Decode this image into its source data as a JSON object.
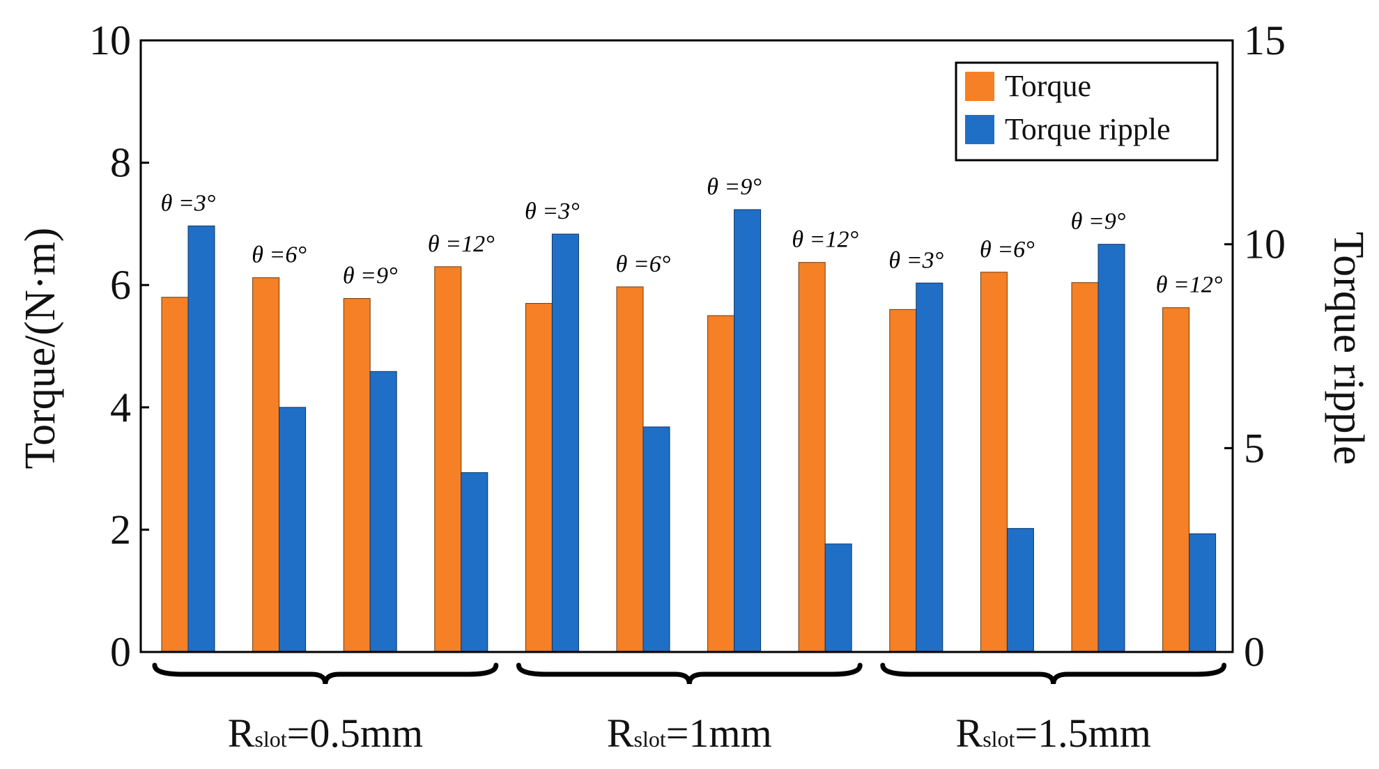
{
  "chart_data": {
    "type": "bar",
    "groups": [
      {
        "label_main": "R",
        "label_sub": "slot",
        "label_value": "=0.5mm",
        "bars": [
          {
            "label": "θ =3°",
            "torque": 5.8,
            "ripple": 10.45
          },
          {
            "label": "θ =6°",
            "torque": 6.12,
            "ripple": 6.0
          },
          {
            "label": "θ =9°",
            "torque": 5.78,
            "ripple": 6.88
          },
          {
            "label": "θ =12°",
            "torque": 6.3,
            "ripple": 4.4
          }
        ]
      },
      {
        "label_main": "R",
        "label_sub": "slot",
        "label_value": "=1mm",
        "bars": [
          {
            "label": "θ =3°",
            "torque": 5.7,
            "ripple": 10.25
          },
          {
            "label": "θ =6°",
            "torque": 5.97,
            "ripple": 5.52
          },
          {
            "label": "θ =9°",
            "torque": 5.5,
            "ripple": 10.85
          },
          {
            "label": "θ =12°",
            "torque": 6.37,
            "ripple": 2.65
          }
        ]
      },
      {
        "label_main": "R",
        "label_sub": "slot",
        "label_value": "=1.5mm",
        "bars": [
          {
            "label": "θ =3°",
            "torque": 5.6,
            "ripple": 9.05
          },
          {
            "label": "θ =6°",
            "torque": 6.21,
            "ripple": 3.03
          },
          {
            "label": "θ =9°",
            "torque": 6.04,
            "ripple": 10.0
          },
          {
            "label": "θ =12°",
            "torque": 5.63,
            "ripple": 2.9
          }
        ]
      }
    ],
    "series": [
      {
        "name": "Torque",
        "color": "#F58025",
        "axis": "left"
      },
      {
        "name": "Torque ripple",
        "color": "#1F6FC6",
        "axis": "right"
      }
    ],
    "ylabel": "Torque/(N·m)",
    "ylabel_right": "Torque ripple",
    "ylim": [
      0,
      10
    ],
    "ylim_right": [
      0,
      15
    ],
    "yticks": [
      "0",
      "2",
      "4",
      "6",
      "8",
      "10"
    ],
    "yticks_right": [
      "0",
      "5",
      "10",
      "15"
    ],
    "legend_position": "top-right",
    "grid": false
  }
}
